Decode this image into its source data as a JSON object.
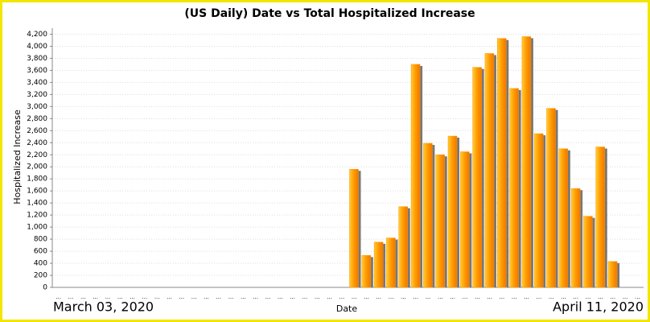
{
  "chart_data": {
    "type": "bar",
    "title": "(US Daily) Date vs Total Hospitalized Increase",
    "x_label": "Date",
    "y_label": "Hospitalized Increase",
    "start_label": "March 03, 2020",
    "end_label": "April 11, 2020",
    "categories": [
      "...",
      "...",
      "...",
      "...",
      "...",
      "...",
      "...",
      "...",
      "...",
      "...",
      "...",
      "...",
      "...",
      "...",
      "...",
      "...",
      "...",
      "...",
      "...",
      "...",
      "...",
      "...",
      "...",
      "...",
      "...",
      "...",
      "...",
      "...",
      "...",
      "...",
      "...",
      "...",
      "...",
      "...",
      "...",
      "...",
      "...",
      "...",
      "...",
      "...",
      "...",
      "...",
      "...",
      "...",
      "...",
      "...",
      "...",
      "..."
    ],
    "values": [
      0,
      0,
      0,
      0,
      0,
      0,
      0,
      0,
      0,
      0,
      0,
      0,
      0,
      0,
      0,
      0,
      0,
      0,
      0,
      0,
      0,
      0,
      0,
      0,
      1960,
      530,
      750,
      820,
      1340,
      3700,
      2390,
      2200,
      2510,
      2250,
      3650,
      3880,
      4130,
      3300,
      4160,
      2550,
      2970,
      2300,
      1640,
      1180,
      2330,
      430,
      0,
      0
    ],
    "color": "#ff9900",
    "ylim": [
      0,
      4300
    ],
    "yticks": [
      0,
      200,
      400,
      600,
      800,
      {
        "value": 1000,
        "label": "1,000"
      },
      {
        "value": 1200,
        "label": "1,200"
      },
      {
        "value": 1400,
        "label": "1,400"
      },
      {
        "value": 1600,
        "label": "1,600"
      },
      {
        "value": 1800,
        "label": "1,800"
      },
      {
        "value": 2000,
        "label": "2,000"
      },
      {
        "value": 2200,
        "label": "2,200"
      },
      {
        "value": 2400,
        "label": "2,400"
      },
      {
        "value": 2600,
        "label": "2,600"
      },
      {
        "value": 2800,
        "label": "2,800"
      },
      {
        "value": 3000,
        "label": "3,000"
      },
      {
        "value": 3200,
        "label": "3,200"
      },
      {
        "value": 3400,
        "label": "3,400"
      },
      {
        "value": 3600,
        "label": "3,600"
      },
      {
        "value": 3800,
        "label": "3,800"
      },
      {
        "value": 4000,
        "label": "4,000"
      },
      {
        "value": 4200,
        "label": "4,200"
      }
    ],
    "grid": true
  }
}
